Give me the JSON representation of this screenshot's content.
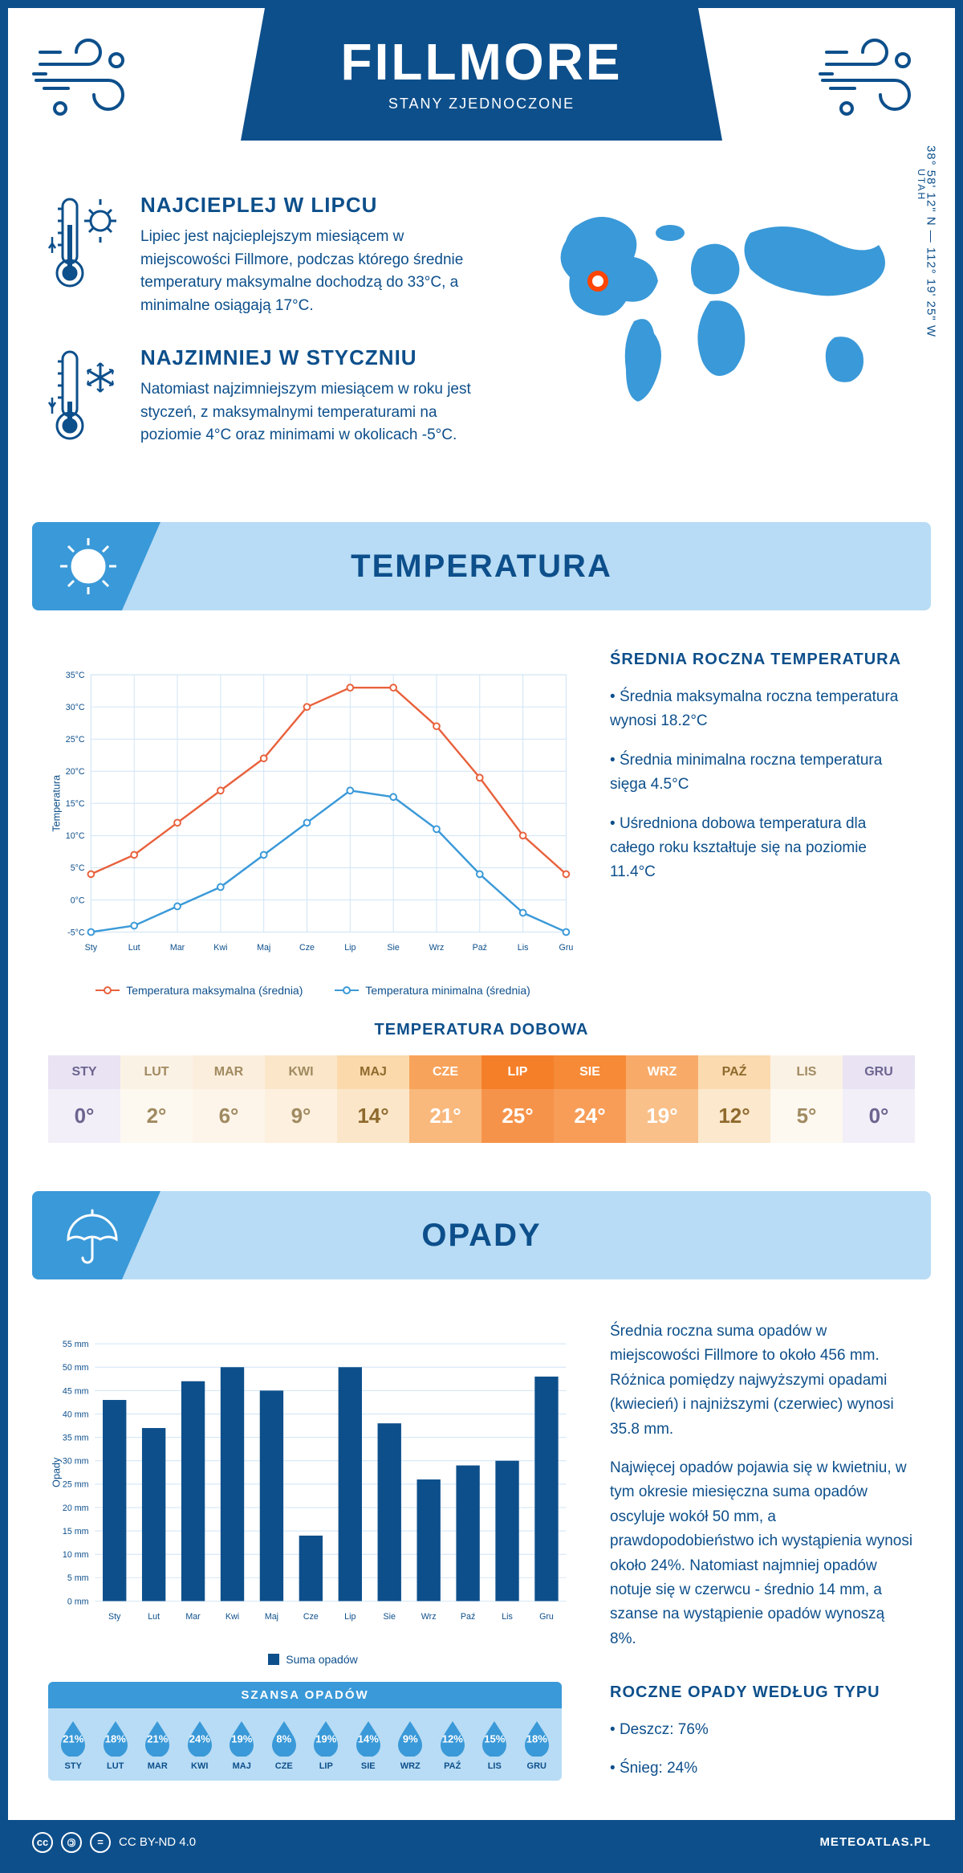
{
  "header": {
    "city": "FILLMORE",
    "country": "STANY ZJEDNOCZONE",
    "region": "UTAH",
    "coords": "38° 58' 12\" N — 112° 19' 25\" W"
  },
  "facts": {
    "warm": {
      "title": "NAJCIEPLEJ W LIPCU",
      "text": "Lipiec jest najcieplejszym miesiącem w miejscowości Fillmore, podczas którego średnie temperatury maksymalne dochodzą do 33°C, a minimalne osiągają 17°C."
    },
    "cold": {
      "title": "NAJZIMNIEJ W STYCZNIU",
      "text": "Natomiast najzimniejszym miesiącem w roku jest styczeń, z maksymalnymi temperaturami na poziomie 4°C oraz minimami w okolicach -5°C."
    }
  },
  "months_short": [
    "Sty",
    "Lut",
    "Mar",
    "Kwi",
    "Maj",
    "Cze",
    "Lip",
    "Sie",
    "Wrz",
    "Paź",
    "Lis",
    "Gru"
  ],
  "months_upper": [
    "STY",
    "LUT",
    "MAR",
    "KWI",
    "MAJ",
    "CZE",
    "LIP",
    "SIE",
    "WRZ",
    "PAŹ",
    "LIS",
    "GRU"
  ],
  "temperature": {
    "section_title": "TEMPERATURA",
    "chart": {
      "type": "line",
      "ylabel": "Temperatura",
      "ylim": [
        -5,
        35
      ],
      "ytick_step": 5,
      "ytick_labels": [
        "-5°C",
        "0°C",
        "5°C",
        "10°C",
        "15°C",
        "20°C",
        "25°C",
        "30°C",
        "35°C"
      ],
      "series": [
        {
          "name": "Temperatura maksymalna (średnia)",
          "color": "#e8613c",
          "values": [
            4,
            7,
            12,
            17,
            22,
            30,
            33,
            33,
            27,
            19,
            10,
            4
          ]
        },
        {
          "name": "Temperatura minimalna (średnia)",
          "color": "#3a99d8",
          "values": [
            -5,
            -4,
            -1,
            2,
            7,
            12,
            17,
            16,
            11,
            4,
            -2,
            -5
          ]
        }
      ],
      "grid_color": "#cfe4f5",
      "background": "#ffffff"
    },
    "summary": {
      "title": "ŚREDNIA ROCZNA TEMPERATURA",
      "items": [
        "Średnia maksymalna roczna temperatura wynosi 18.2°C",
        "Średnia minimalna roczna temperatura sięga 4.5°C",
        "Uśredniona dobowa temperatura dla całego roku kształtuje się na poziomie 11.4°C"
      ]
    },
    "daily": {
      "title": "TEMPERATURA DOBOWA",
      "values": [
        "0°",
        "2°",
        "6°",
        "9°",
        "14°",
        "21°",
        "25°",
        "24°",
        "19°",
        "12°",
        "5°",
        "0°"
      ],
      "head_colors": [
        "#e9e3f3",
        "#fbf2e6",
        "#fbeedd",
        "#fbe6ca",
        "#fbd9ab",
        "#f8a35b",
        "#f57f28",
        "#f68a36",
        "#f8ab69",
        "#fbdab0",
        "#fbf2e6",
        "#e9e3f3"
      ],
      "val_colors": [
        "#f2eff8",
        "#fdf8f0",
        "#fdf5ea",
        "#fdf0df",
        "#fbe6c9",
        "#f9b87c",
        "#f6934a",
        "#f79d58",
        "#f9c08a",
        "#fbe8cd",
        "#fdf8f0",
        "#f2eff8"
      ],
      "text_colors": [
        "#6d6490",
        "#a08a60",
        "#a08a60",
        "#a08a60",
        "#8f6a2d",
        "#ffffff",
        "#ffffff",
        "#ffffff",
        "#ffffff",
        "#8f6a2d",
        "#a08a60",
        "#6d6490"
      ]
    }
  },
  "precipitation": {
    "section_title": "OPADY",
    "chart": {
      "type": "bar",
      "ylabel": "Opady",
      "ylim": [
        0,
        55
      ],
      "ytick_step": 5,
      "ytick_suffix": " mm",
      "values": [
        43,
        37,
        47,
        50,
        45,
        14,
        50,
        38,
        26,
        29,
        30,
        48
      ],
      "bar_color": "#0d4f8b",
      "legend": "Suma opadów",
      "grid_color": "#cfe4f5"
    },
    "summary": {
      "p1": "Średnia roczna suma opadów w miejscowości Fillmore to około 456 mm. Różnica pomiędzy najwyższymi opadami (kwiecień) i najniższymi (czerwiec) wynosi 35.8 mm.",
      "p2": "Najwięcej opadów pojawia się w kwietniu, w tym okresie miesięczna suma opadów oscyluje wokół 50 mm, a prawdopodobieństwo ich wystąpienia wynosi około 24%. Natomiast najmniej opadów notuje się w czerwcu - średnio 14 mm, a szanse na wystąpienie opadów wynoszą 8%."
    },
    "chance": {
      "title": "SZANSA OPADÓW",
      "values": [
        "21%",
        "18%",
        "21%",
        "24%",
        "19%",
        "8%",
        "19%",
        "14%",
        "9%",
        "12%",
        "15%",
        "18%"
      ],
      "drop_color": "#3a99d8"
    },
    "by_type": {
      "title": "ROCZNE OPADY WEDŁUG TYPU",
      "items": [
        "Deszcz: 76%",
        "Śnieg: 24%"
      ]
    }
  },
  "footer": {
    "license": "CC BY-ND 4.0",
    "site": "METEOATLAS.PL"
  },
  "colors": {
    "primary": "#0d4f8b",
    "light": "#b8dcf5",
    "accent": "#3a99d8"
  }
}
